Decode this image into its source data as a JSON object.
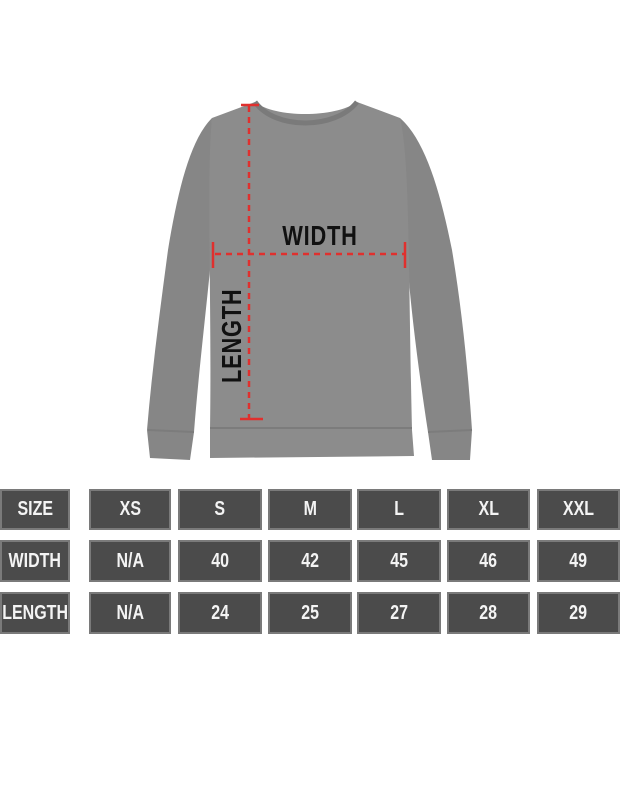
{
  "diagram": {
    "width_label": "WIDTH",
    "length_label": "LENGTH",
    "garment_color": "#8a8a8a",
    "measure_line_color": "#e0302e"
  },
  "size_chart": {
    "header": [
      "SIZE",
      "XS",
      "S",
      "M",
      "L",
      "XL",
      "XXL"
    ],
    "rows": [
      [
        "WIDTH",
        "N/A",
        "40",
        "42",
        "45",
        "46",
        "49"
      ],
      [
        "LENGTH",
        "N/A",
        "24",
        "25",
        "27",
        "28",
        "29"
      ]
    ],
    "cell_color": "#4b4b4b"
  }
}
